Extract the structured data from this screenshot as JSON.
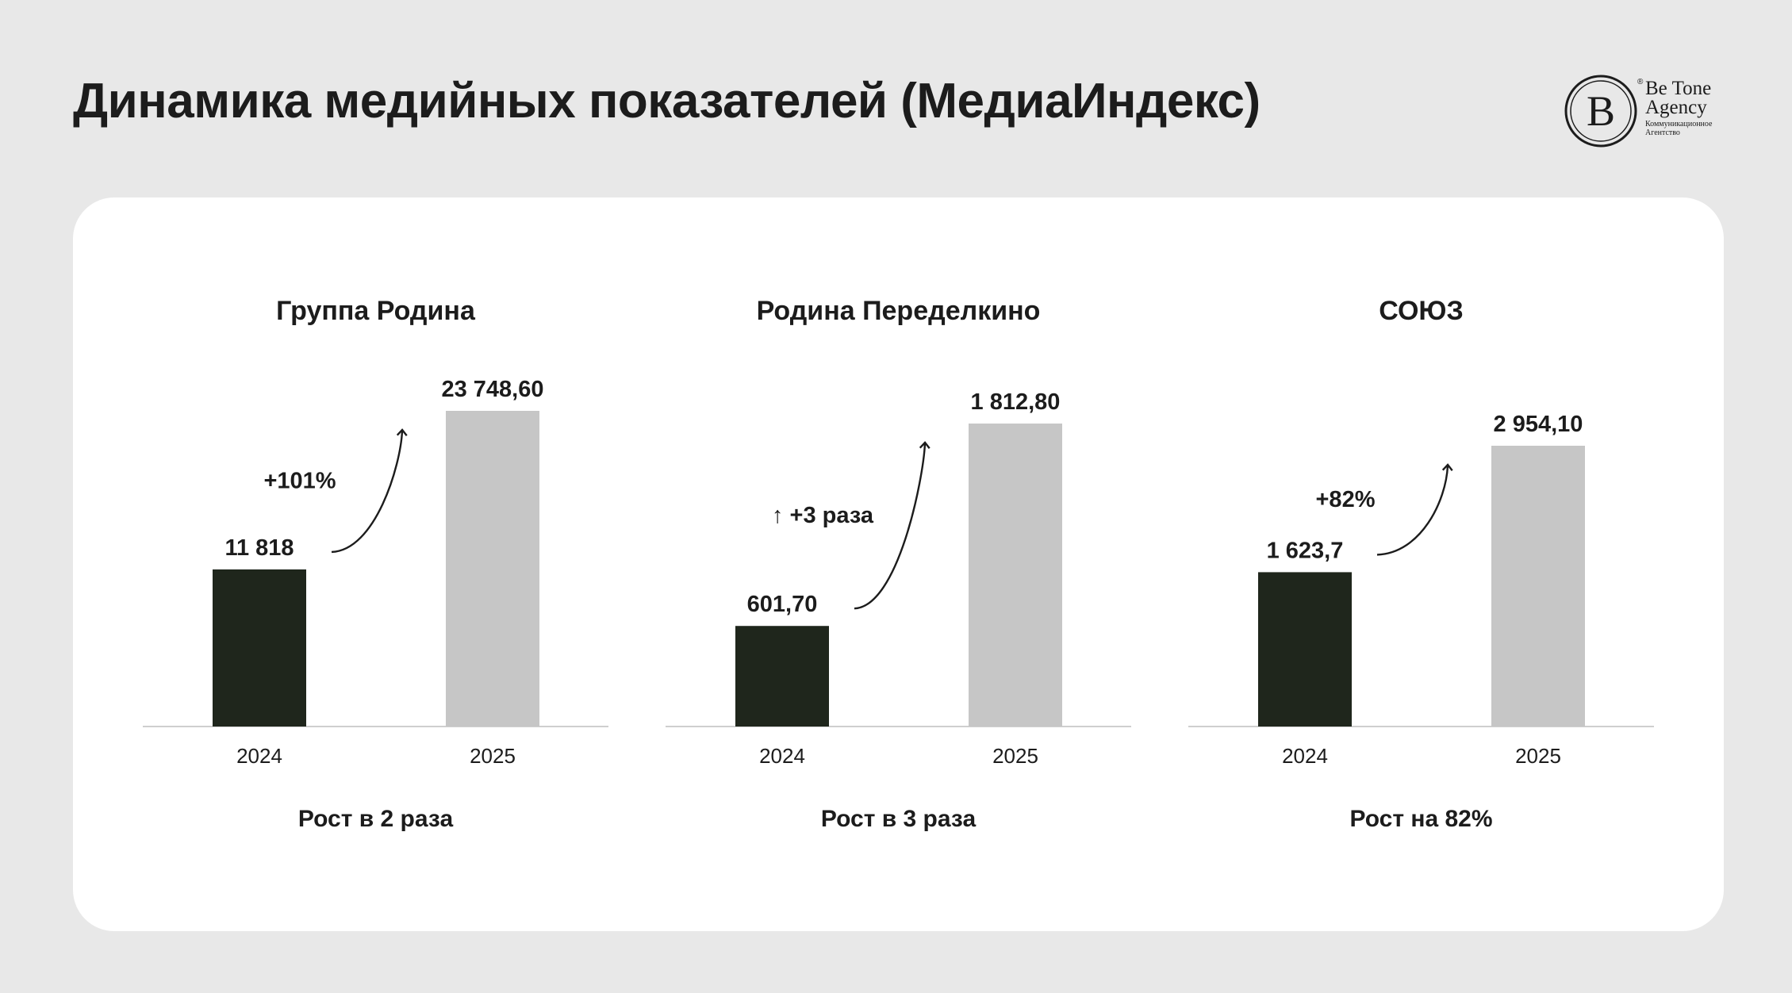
{
  "page": {
    "title": "Динамика медийных показателей (МедиаИндекс)"
  },
  "logo": {
    "monogram": "B",
    "line1": "Be Tone",
    "line2": "Agency",
    "line3": "Коммуникационное",
    "line4": "Агентство",
    "reg": "®"
  },
  "colors": {
    "bar_2024": "#1f261c",
    "bar_2025": "#c6c6c6",
    "baseline": "#cfcfcf",
    "background": "#e8e8e8",
    "card": "#ffffff"
  },
  "chart_data": [
    {
      "type": "bar",
      "title": "Группа Родина",
      "categories": [
        "2024",
        "2025"
      ],
      "values": [
        11818,
        23748.6
      ],
      "value_labels": [
        "11 818",
        "23 748,60"
      ],
      "growth_label": "+101%",
      "caption": "Рост в 2 раза"
    },
    {
      "type": "bar",
      "title": "Родина Переделкино",
      "categories": [
        "2024",
        "2025"
      ],
      "values": [
        601.7,
        1812.8
      ],
      "value_labels": [
        "601,70",
        "1 812,80"
      ],
      "growth_label": "↑ +3 раза",
      "caption": "Рост в 3 раза"
    },
    {
      "type": "bar",
      "title": "СОЮЗ",
      "categories": [
        "2024",
        "2025"
      ],
      "values": [
        1623.7,
        2954.1
      ],
      "value_labels": [
        "1 623,7",
        "2 954,10"
      ],
      "growth_label": "+82%",
      "caption": "Рост на 82%"
    }
  ]
}
